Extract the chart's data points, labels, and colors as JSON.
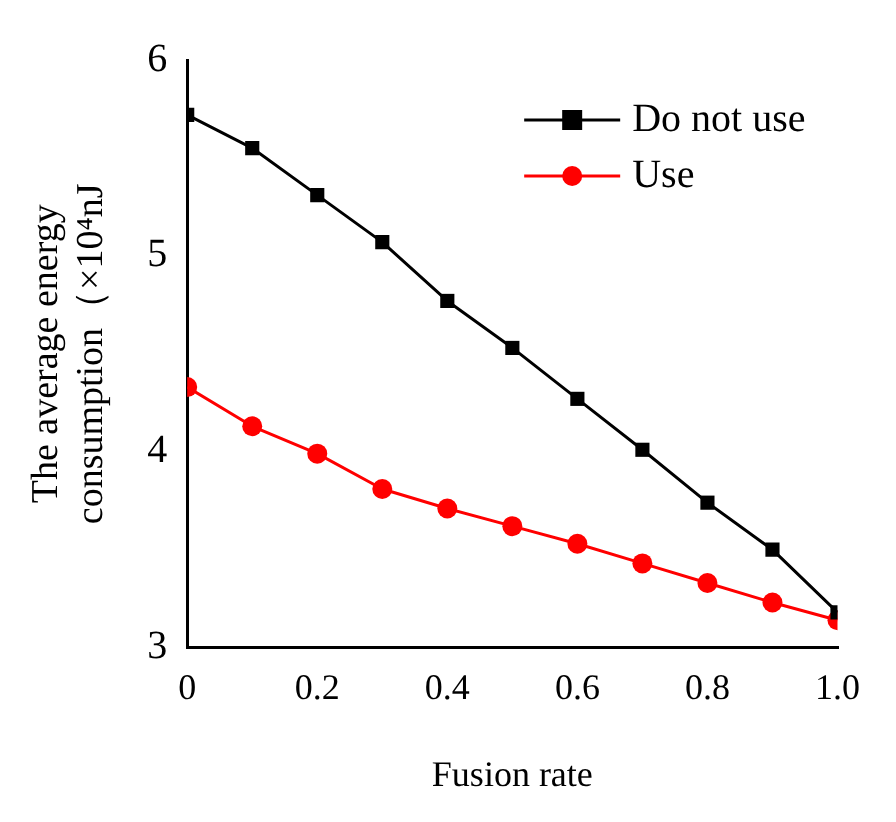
{
  "chart_data": {
    "type": "line",
    "xlabel": "Fusion rate",
    "ylabel": "The average energy consumption（×10⁴nJ",
    "x": [
      0,
      0.1,
      0.2,
      0.3,
      0.4,
      0.5,
      0.6,
      0.7,
      0.8,
      0.9,
      1.0
    ],
    "series": [
      {
        "name": "Do not use",
        "color": "#000000",
        "marker": "square",
        "values": [
          5.72,
          5.55,
          5.31,
          5.07,
          4.77,
          4.53,
          4.27,
          4.01,
          3.74,
          3.5,
          3.18
        ]
      },
      {
        "name": "Use",
        "color": "#ff0000",
        "marker": "circle",
        "values": [
          4.33,
          4.13,
          3.99,
          3.81,
          3.71,
          3.62,
          3.53,
          3.43,
          3.33,
          3.23,
          3.14
        ]
      }
    ],
    "xlim": [
      0,
      1
    ],
    "xticks": [
      0,
      0.2,
      0.4,
      0.6,
      0.8,
      {
        "value": 1,
        "label": "1.0"
      }
    ],
    "ylim": [
      3,
      6
    ],
    "yticks": [
      3,
      4,
      5,
      6
    ],
    "grid": false,
    "legend": "top right",
    "line_style": "solid"
  }
}
